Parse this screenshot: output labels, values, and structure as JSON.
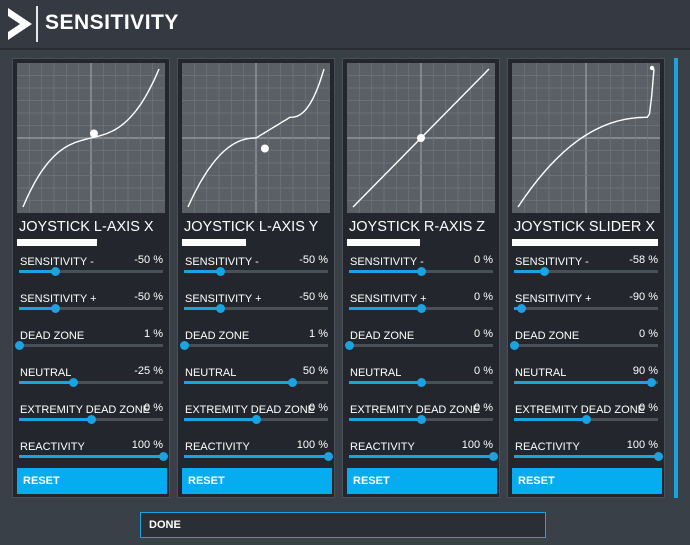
{
  "header": {
    "title": "SENSITIVITY",
    "logo_icon": "chevron-right-logo-icon"
  },
  "colors": {
    "accent": "#05acf0",
    "slider": "#1aa3e0",
    "panel_bg": "#23272d",
    "graph_bg": "#5b6067",
    "page_bg": "#3a4048"
  },
  "panels": [
    {
      "axis_name": "JOYSTICK L-AXIS X",
      "axis_position": 0.55,
      "curve": "symmetric",
      "settings": [
        {
          "label": "SENSITIVITY -",
          "value": "-50 %",
          "level": 0.25
        },
        {
          "label": "SENSITIVITY +",
          "value": "-50 %",
          "level": 0.25
        },
        {
          "label": "DEAD ZONE",
          "value": "1 %",
          "level": 0.0
        },
        {
          "label": "NEUTRAL",
          "value": "-25 %",
          "level": 0.375
        },
        {
          "label": "EXTREMITY DEAD ZONE",
          "value": "0 %",
          "level": 0.5
        },
        {
          "label": "REACTIVITY",
          "value": "100 %",
          "level": 1.0
        }
      ],
      "reset_label": "RESET"
    },
    {
      "axis_name": "JOYSTICK L-AXIS Y",
      "axis_position": 0.44,
      "curve": "shifted",
      "settings": [
        {
          "label": "SENSITIVITY -",
          "value": "-50 %",
          "level": 0.25
        },
        {
          "label": "SENSITIVITY +",
          "value": "-50 %",
          "level": 0.25
        },
        {
          "label": "DEAD ZONE",
          "value": "1 %",
          "level": 0.0
        },
        {
          "label": "NEUTRAL",
          "value": "50 %",
          "level": 0.75
        },
        {
          "label": "EXTREMITY DEAD ZONE",
          "value": "0 %",
          "level": 0.5
        },
        {
          "label": "REACTIVITY",
          "value": "100 %",
          "level": 1.0
        }
      ],
      "reset_label": "RESET"
    },
    {
      "axis_name": "JOYSTICK R-AXIS Z",
      "axis_position": 0.5,
      "curve": "linear",
      "settings": [
        {
          "label": "SENSITIVITY -",
          "value": "0 %",
          "level": 0.5
        },
        {
          "label": "SENSITIVITY +",
          "value": "0 %",
          "level": 0.5
        },
        {
          "label": "DEAD ZONE",
          "value": "0 %",
          "level": 0.0
        },
        {
          "label": "NEUTRAL",
          "value": "0 %",
          "level": 0.5
        },
        {
          "label": "EXTREMITY DEAD ZONE",
          "value": "0 %",
          "level": 0.5
        },
        {
          "label": "REACTIVITY",
          "value": "100 %",
          "level": 1.0
        }
      ],
      "reset_label": "RESET"
    },
    {
      "axis_name": "JOYSTICK SLIDER X",
      "axis_position": 1.0,
      "curve": "extreme",
      "settings": [
        {
          "label": "SENSITIVITY -",
          "value": "-58 %",
          "level": 0.21
        },
        {
          "label": "SENSITIVITY +",
          "value": "-90 %",
          "level": 0.05
        },
        {
          "label": "DEAD ZONE",
          "value": "0 %",
          "level": 0.0
        },
        {
          "label": "NEUTRAL",
          "value": "90 %",
          "level": 0.95
        },
        {
          "label": "EXTREMITY DEAD ZONE",
          "value": "0 %",
          "level": 0.5
        },
        {
          "label": "REACTIVITY",
          "value": "100 %",
          "level": 1.0
        }
      ],
      "reset_label": "RESET"
    }
  ],
  "done_label": "DONE"
}
